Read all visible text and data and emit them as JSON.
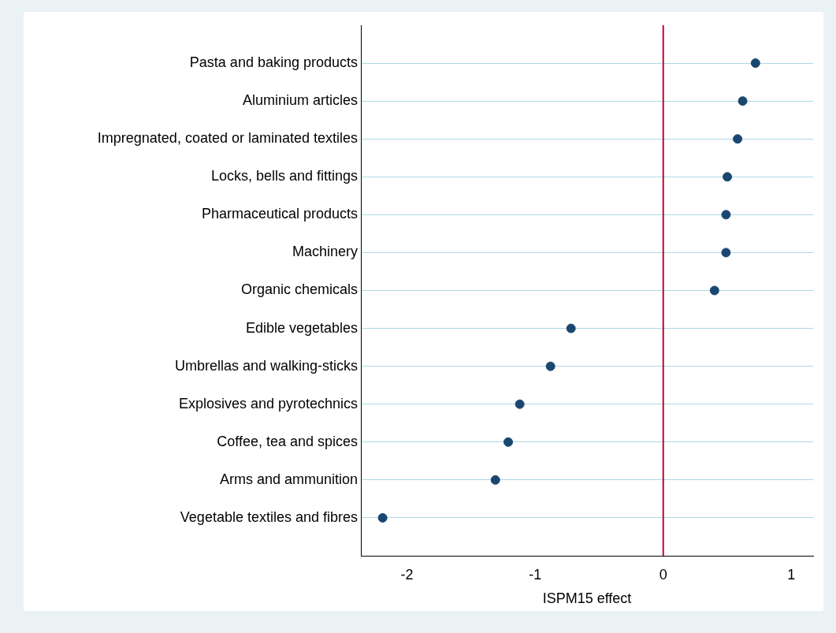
{
  "chart_data": {
    "type": "scatter",
    "orientation": "horizontal",
    "xlabel": "ISPM15 effect",
    "categories": [
      "Pasta and baking products",
      "Aluminium articles",
      "Impregnated, coated or laminated textiles",
      "Locks, bells and fittings",
      "Pharmaceutical products",
      "Machinery",
      "Organic chemicals",
      "Edible vegetables",
      "Umbrellas and walking-sticks",
      "Explosives and pyrotechnics",
      "Coffee, tea and spices",
      "Arms and ammunition",
      "Vegetable textiles and fibres"
    ],
    "values": [
      0.72,
      0.62,
      0.58,
      0.5,
      0.49,
      0.49,
      0.4,
      -0.72,
      -0.88,
      -1.12,
      -1.21,
      -1.31,
      -2.19
    ],
    "color": "#1a476f",
    "marker": "circle",
    "xlim": [
      -2.36,
      1.17
    ],
    "xticks": [
      -2,
      -1,
      0,
      1
    ],
    "grid": "y",
    "legend": false,
    "ref_lines": [
      {
        "axis": "x",
        "value": 0,
        "color": "#c10534"
      }
    ]
  }
}
